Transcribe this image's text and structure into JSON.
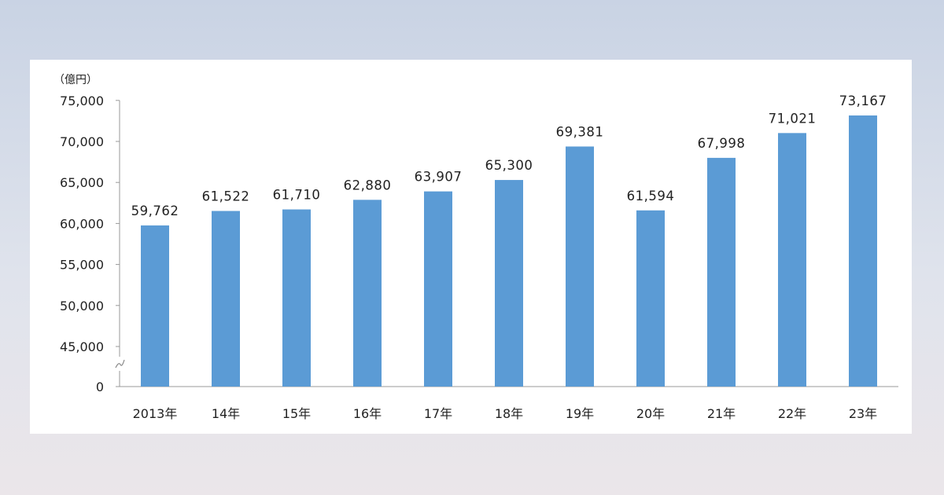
{
  "chart_data": {
    "type": "bar",
    "unit_label": "（億円）",
    "categories": [
      "2013年",
      "14年",
      "15年",
      "16年",
      "17年",
      "18年",
      "19年",
      "20年",
      "21年",
      "22年",
      "23年"
    ],
    "values": [
      59762,
      61522,
      61710,
      62880,
      63907,
      65300,
      69381,
      61594,
      67998,
      71021,
      73167
    ],
    "value_labels": [
      "59,762",
      "61,522",
      "61,710",
      "62,880",
      "63,907",
      "65,300",
      "69,381",
      "61,594",
      "67,998",
      "71,021",
      "73,167"
    ],
    "y_tick_labels": [
      "0",
      "45,000",
      "50,000",
      "55,000",
      "60,000",
      "65,000",
      "70,000",
      "75,000"
    ],
    "ylim": [
      40000,
      75000
    ],
    "y_axis_break": true,
    "grid": false,
    "bar_color": "#5b9bd5"
  }
}
